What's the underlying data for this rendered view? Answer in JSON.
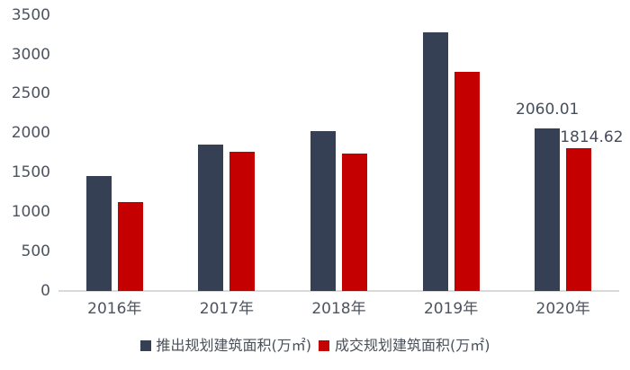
{
  "colors": {
    "series1": "#354055",
    "series2": "#c40000",
    "axis_line": "#d9d9d9",
    "axis_text": "#4d5460",
    "annotation_text": "#454e5c",
    "legend_text": "#4a5058",
    "background": "#ffffff"
  },
  "chart_data": {
    "type": "bar",
    "title": "",
    "xlabel": "",
    "ylabel": "",
    "categories": [
      "2016年",
      "2017年",
      "2018年",
      "2019年",
      "2020年"
    ],
    "series": [
      {
        "name": "推出规划建筑面积(万㎡)",
        "color": "#354055",
        "values": [
          1460,
          1856,
          2030,
          3280,
          2060.01
        ]
      },
      {
        "name": "成交规划建筑面积(万㎡)",
        "color": "#c40000",
        "values": [
          1130,
          1760,
          1745,
          2775,
          1814.62
        ]
      }
    ],
    "yticks": [
      0,
      500,
      1000,
      1500,
      2000,
      2500,
      3000,
      3500
    ],
    "ylim": [
      0,
      3500
    ],
    "grid": false,
    "legend_position": "bottom",
    "annotations": [
      {
        "text": "2060.01",
        "series": 0,
        "category_index": 4
      },
      {
        "text": "1814.62",
        "series": 1,
        "category_index": 4
      }
    ]
  }
}
